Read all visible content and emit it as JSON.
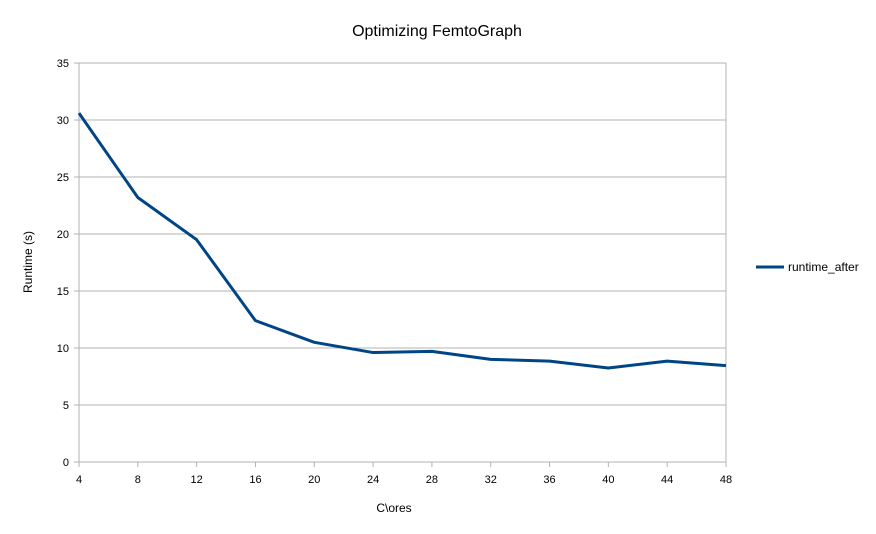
{
  "chart_data": {
    "type": "line",
    "title": "Optimizing FemtoGraph",
    "xlabel": "C\\ores",
    "ylabel": "Runtime (s)",
    "x": [
      4,
      8,
      12,
      16,
      20,
      24,
      28,
      32,
      36,
      40,
      44,
      48
    ],
    "series": [
      {
        "name": "runtime_after",
        "color": "#004586",
        "values": [
          30.6,
          23.2,
          19.5,
          12.4,
          10.5,
          9.6,
          9.7,
          9.0,
          8.85,
          8.25,
          8.85,
          8.45
        ]
      }
    ],
    "ylim": [
      0,
      35
    ],
    "yticks": [
      0,
      5,
      10,
      15,
      20,
      25,
      30,
      35
    ],
    "xticks": [
      4,
      8,
      12,
      16,
      20,
      24,
      28,
      32,
      36,
      40,
      44,
      48
    ],
    "grid": true,
    "legend_position": "right"
  }
}
